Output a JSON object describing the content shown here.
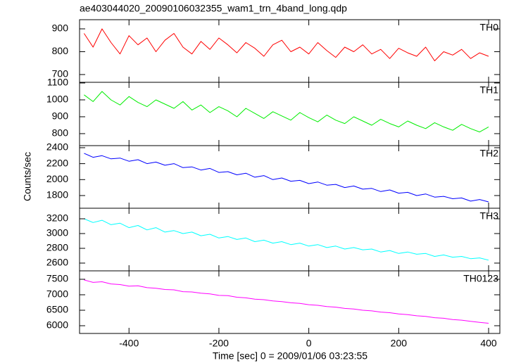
{
  "title": "ae403044020_20090106032355_wam1_trn_4band_long.qdp",
  "y_label": "Counts/sec",
  "x_label": "Time [sec] 0 = 2009/01/06 03:23:55",
  "x": [
    -500,
    -480,
    -460,
    -440,
    -420,
    -400,
    -380,
    -360,
    -340,
    -320,
    -300,
    -280,
    -260,
    -240,
    -220,
    -200,
    -180,
    -160,
    -140,
    -120,
    -100,
    -80,
    -60,
    -40,
    -20,
    0,
    20,
    40,
    60,
    80,
    100,
    120,
    140,
    160,
    180,
    200,
    220,
    240,
    260,
    280,
    300,
    320,
    340,
    360,
    380,
    400
  ],
  "xlim": [
    -510,
    425
  ],
  "xticks": [
    -400,
    -200,
    0,
    200,
    400
  ],
  "chart_data": [
    {
      "type": "line",
      "ylim": [
        666,
        940
      ],
      "yticks": [
        700,
        800,
        900
      ],
      "series": [
        {
          "name": "TH0",
          "color": "#ff0000",
          "values": [
            880,
            820,
            900,
            840,
            790,
            870,
            830,
            860,
            800,
            850,
            880,
            820,
            790,
            845,
            810,
            860,
            830,
            795,
            840,
            815,
            780,
            830,
            850,
            800,
            820,
            790,
            840,
            805,
            775,
            820,
            800,
            830,
            790,
            810,
            770,
            815,
            795,
            780,
            820,
            760,
            800,
            785,
            810,
            770,
            795,
            780
          ]
        }
      ]
    },
    {
      "type": "line",
      "ylim": [
        729,
        1104
      ],
      "yticks": [
        800,
        900,
        1000,
        1100
      ],
      "series": [
        {
          "name": "TH1",
          "color": "#00ee00",
          "values": [
            1030,
            990,
            1050,
            1000,
            970,
            1020,
            985,
            960,
            1000,
            975,
            950,
            990,
            940,
            970,
            925,
            960,
            935,
            900,
            950,
            920,
            890,
            930,
            905,
            880,
            925,
            895,
            870,
            910,
            880,
            860,
            900,
            875,
            850,
            885,
            860,
            840,
            875,
            850,
            830,
            865,
            840,
            820,
            855,
            830,
            810,
            840
          ]
        }
      ]
    },
    {
      "type": "line",
      "ylim": [
        1641,
        2426
      ],
      "yticks": [
        1800,
        2000,
        2200,
        2400
      ],
      "series": [
        {
          "name": "TH2",
          "color": "#0000ff",
          "values": [
            2330,
            2280,
            2300,
            2260,
            2270,
            2230,
            2250,
            2200,
            2220,
            2180,
            2200,
            2150,
            2160,
            2120,
            2140,
            2090,
            2100,
            2060,
            2080,
            2030,
            2050,
            2000,
            2020,
            1980,
            1990,
            1950,
            1970,
            1930,
            1940,
            1900,
            1920,
            1880,
            1890,
            1850,
            1870,
            1830,
            1840,
            1800,
            1820,
            1780,
            1790,
            1760,
            1770,
            1730,
            1750,
            1720
          ]
        }
      ]
    },
    {
      "type": "line",
      "ylim": [
        2495,
        3343
      ],
      "yticks": [
        2600,
        2800,
        3000,
        3200
      ],
      "series": [
        {
          "name": "TH3",
          "color": "#00ffff",
          "values": [
            3200,
            3150,
            3180,
            3120,
            3140,
            3080,
            3110,
            3050,
            3080,
            3020,
            3040,
            3000,
            3020,
            2970,
            2990,
            2940,
            2960,
            2920,
            2940,
            2890,
            2910,
            2870,
            2890,
            2850,
            2870,
            2830,
            2850,
            2810,
            2830,
            2790,
            2810,
            2780,
            2790,
            2750,
            2770,
            2730,
            2750,
            2720,
            2730,
            2690,
            2710,
            2680,
            2690,
            2660,
            2670,
            2640
          ]
        }
      ]
    },
    {
      "type": "line",
      "ylim": [
        5750,
        7773
      ],
      "yticks": [
        6000,
        6500,
        7000,
        7500
      ],
      "series": [
        {
          "name": "TH0123",
          "color": "#ff00ff",
          "values": [
            7480,
            7400,
            7420,
            7350,
            7330,
            7280,
            7290,
            7230,
            7210,
            7170,
            7160,
            7100,
            7090,
            7050,
            7030,
            6980,
            6970,
            6920,
            6900,
            6860,
            6840,
            6800,
            6780,
            6740,
            6720,
            6680,
            6660,
            6620,
            6600,
            6560,
            6540,
            6500,
            6480,
            6440,
            6420,
            6380,
            6360,
            6320,
            6300,
            6260,
            6240,
            6200,
            6180,
            6140,
            6110,
            6080
          ]
        }
      ]
    }
  ]
}
